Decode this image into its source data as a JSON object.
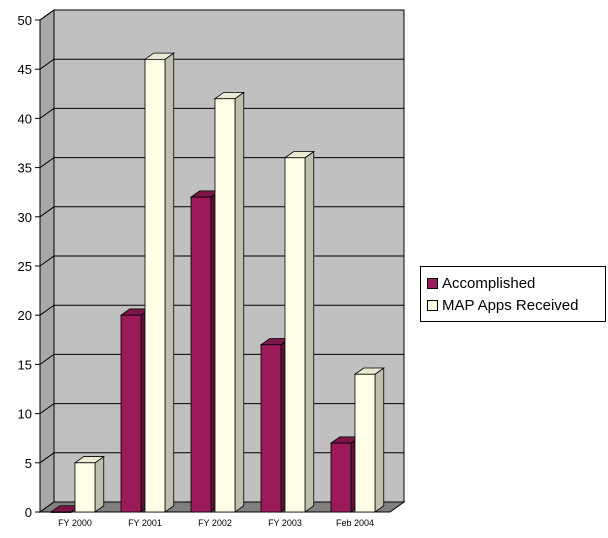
{
  "chart_data": {
    "type": "bar",
    "categories": [
      "FY 2000",
      "FY 2001",
      "FY 2002",
      "FY 2003",
      "Feb 2004"
    ],
    "series": [
      {
        "name": "Accomplished",
        "values": [
          0,
          20,
          32,
          17,
          7
        ],
        "color": "#9b1a5a"
      },
      {
        "name": "MAP Apps Received",
        "values": [
          5,
          46,
          42,
          36,
          14
        ],
        "color": "#ffffe8"
      }
    ],
    "title": "",
    "xlabel": "",
    "ylabel": "",
    "ylim": [
      0,
      50
    ],
    "yticks": [
      0,
      5,
      10,
      15,
      20,
      25,
      30,
      35,
      40,
      45,
      50
    ],
    "grid": true,
    "legend": "right",
    "style": "3d-column",
    "wall_color": "#c0c0c0",
    "floor_color": "#808080"
  }
}
